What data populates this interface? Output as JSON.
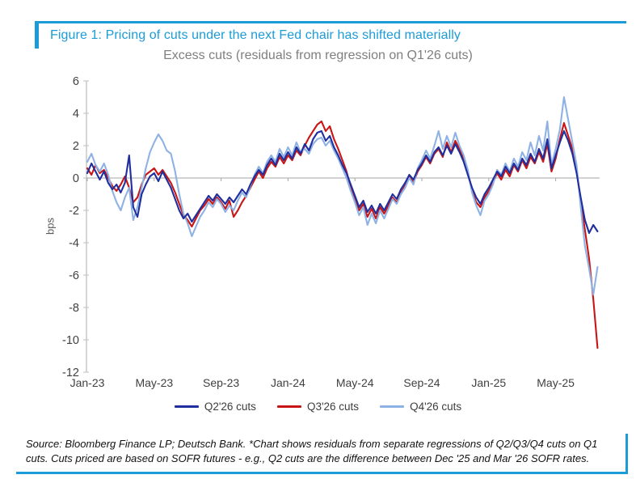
{
  "figure_title": "Figure 1: Pricing of cuts under the next Fed chair has shifted materially",
  "source_note": "Source: Bloomberg Finance LP; Deutsch Bank. *Chart shows residuals from separate regressions of Q2/Q3/Q4 cuts on Q1 cuts. Cuts priced are based on SOFR futures - e.g., Q2 cuts are the difference between Dec '25 and Mar '26 SOFR rates.",
  "ui_colors": {
    "accent_cyan": "#1b9cd8",
    "chart_title_gray": "#7f7f7f",
    "axis_line": "#bfbfbf",
    "zero_line": "#a6a6a6",
    "tick_text": "#404040"
  },
  "chart_data": {
    "type": "line",
    "title": "Excess cuts (residuals from regression on Q1'26 cuts)",
    "ylabel": "bps",
    "ylim": [
      -12,
      6
    ],
    "y_ticks": [
      6,
      4,
      2,
      0,
      -2,
      -4,
      -6,
      -8,
      -10,
      -12
    ],
    "x_tick_labels": [
      "Jan-23",
      "May-23",
      "Sep-23",
      "Jan-24",
      "May-24",
      "Sep-24",
      "Jan-25",
      "May-25"
    ],
    "x_start": "Jan-23",
    "x_end": "Jul-25",
    "x_interval_months": 0.25,
    "grid": "zero axis line only",
    "legend_position": "bottom",
    "series": [
      {
        "name": "Q2'26 cuts",
        "color": "#1f2f9e",
        "values": [
          0.3,
          0.9,
          0.4,
          -0.1,
          0.4,
          -0.3,
          -0.7,
          -0.4,
          -0.9,
          -0.3,
          1.4,
          -1.8,
          -2.4,
          -1.0,
          -0.4,
          0.1,
          0.3,
          -0.2,
          0.4,
          -0.1,
          -0.6,
          -1.3,
          -2.0,
          -2.5,
          -2.2,
          -2.7,
          -2.3,
          -1.9,
          -1.5,
          -1.1,
          -1.4,
          -1.0,
          -1.3,
          -1.6,
          -1.2,
          -1.5,
          -1.1,
          -0.7,
          -1.0,
          -0.4,
          0.1,
          0.5,
          0.2,
          0.8,
          1.2,
          0.8,
          1.5,
          1.1,
          1.6,
          1.2,
          1.9,
          1.5,
          2.1,
          1.7,
          2.4,
          2.8,
          2.9,
          2.3,
          2.6,
          1.9,
          1.4,
          0.8,
          0.3,
          -0.4,
          -1.1,
          -1.8,
          -1.4,
          -2.1,
          -1.7,
          -2.2,
          -1.6,
          -2.0,
          -1.5,
          -1.0,
          -1.3,
          -0.7,
          -0.3,
          0.2,
          -0.1,
          0.5,
          0.9,
          1.4,
          1.0,
          1.6,
          1.9,
          1.4,
          2.0,
          1.5,
          2.1,
          1.6,
          1.0,
          0.2,
          -0.6,
          -1.2,
          -1.6,
          -1.0,
          -0.6,
          -0.1,
          0.4,
          0.1,
          0.7,
          0.3,
          0.9,
          0.5,
          1.2,
          0.8,
          1.5,
          1.0,
          1.8,
          1.2,
          2.4,
          0.6,
          1.4,
          2.2,
          2.9,
          2.3,
          1.5,
          0.3,
          -1.2,
          -2.6,
          -3.4,
          -2.9,
          -3.3
        ]
      },
      {
        "name": "Q3'26 cuts",
        "color": "#c81616",
        "values": [
          0.6,
          0.2,
          0.8,
          0.3,
          0.5,
          0.0,
          -0.5,
          -0.8,
          -0.4,
          0.1,
          -0.6,
          -1.5,
          -1.2,
          -0.4,
          0.2,
          0.4,
          0.6,
          0.2,
          0.5,
          0.1,
          -0.3,
          -0.9,
          -1.6,
          -2.3,
          -2.6,
          -3.0,
          -2.5,
          -2.0,
          -1.7,
          -1.3,
          -1.6,
          -1.2,
          -1.5,
          -1.9,
          -1.4,
          -2.4,
          -2.0,
          -1.5,
          -1.1,
          -0.6,
          -0.1,
          0.4,
          0.0,
          0.6,
          1.0,
          0.7,
          1.3,
          0.9,
          1.4,
          1.1,
          1.7,
          1.4,
          2.0,
          2.5,
          2.9,
          3.3,
          3.5,
          2.9,
          3.2,
          2.4,
          1.8,
          1.1,
          0.4,
          -0.6,
          -1.3,
          -2.0,
          -1.6,
          -2.4,
          -1.9,
          -2.5,
          -1.8,
          -2.2,
          -1.7,
          -1.2,
          -1.5,
          -0.9,
          -0.5,
          0.1,
          -0.3,
          0.4,
          0.8,
          1.3,
          0.9,
          1.5,
          1.8,
          1.3,
          2.2,
          1.6,
          2.3,
          1.8,
          1.2,
          0.4,
          -0.8,
          -1.5,
          -1.8,
          -1.2,
          -0.8,
          -0.3,
          0.3,
          -0.1,
          0.5,
          0.1,
          0.8,
          0.4,
          1.1,
          0.6,
          1.3,
          0.9,
          1.6,
          1.0,
          2.1,
          0.4,
          1.2,
          2.4,
          3.4,
          2.6,
          1.8,
          0.5,
          -1.5,
          -3.2,
          -5.0,
          -7.5,
          -10.5
        ]
      },
      {
        "name": "Q4'26 cuts",
        "color": "#8fb2e4",
        "values": [
          1.0,
          1.5,
          0.8,
          0.4,
          0.9,
          0.2,
          -0.8,
          -1.5,
          -2.0,
          -1.2,
          -0.6,
          -2.6,
          -1.8,
          -0.6,
          0.6,
          1.6,
          2.2,
          2.7,
          2.3,
          1.7,
          1.5,
          0.4,
          -1.0,
          -2.2,
          -2.8,
          -3.6,
          -3.0,
          -2.4,
          -2.0,
          -1.5,
          -1.8,
          -1.3,
          -1.6,
          -2.1,
          -1.7,
          -2.0,
          -1.4,
          -0.9,
          -1.2,
          -0.5,
          0.2,
          0.7,
          0.3,
          1.0,
          1.4,
          1.0,
          1.8,
          1.3,
          1.9,
          1.4,
          2.2,
          1.6,
          1.8,
          1.5,
          2.1,
          2.4,
          2.5,
          2.0,
          2.3,
          1.7,
          1.2,
          0.6,
          0.0,
          -0.8,
          -1.5,
          -2.3,
          -1.8,
          -2.9,
          -2.2,
          -2.8,
          -2.0,
          -2.5,
          -1.9,
          -1.3,
          -1.6,
          -1.0,
          -0.6,
          0.0,
          -0.4,
          0.6,
          1.1,
          1.7,
          1.2,
          2.0,
          2.9,
          1.8,
          2.6,
          1.9,
          2.8,
          2.0,
          1.4,
          0.5,
          -0.9,
          -1.7,
          -2.3,
          -1.4,
          -1.0,
          -0.4,
          0.5,
          0.2,
          0.9,
          0.4,
          1.2,
          0.7,
          1.6,
          1.1,
          2.2,
          1.4,
          2.6,
          1.7,
          3.5,
          0.8,
          1.8,
          3.0,
          5.0,
          3.6,
          2.2,
          0.8,
          -1.8,
          -4.2,
          -5.6,
          -7.2,
          -5.5
        ]
      }
    ]
  }
}
